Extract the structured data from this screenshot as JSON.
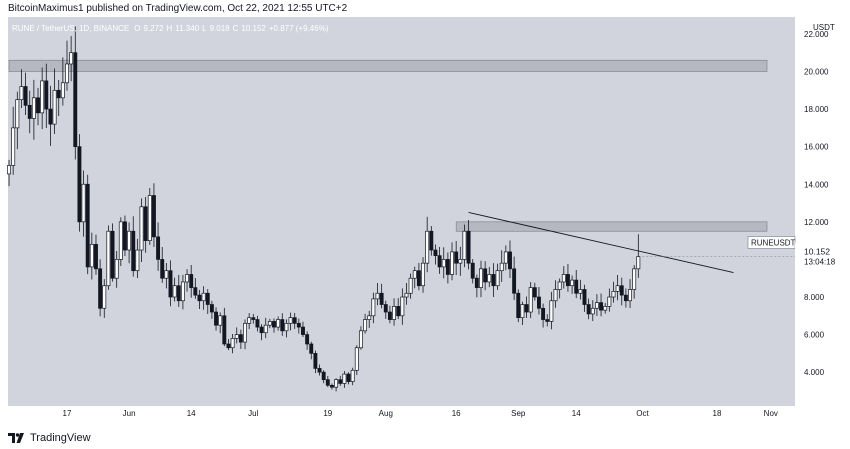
{
  "header": {
    "text": "BitcoinMaximus1 published on TradingView.com, Oct 22, 2021 12:55 UTC+2"
  },
  "footer": {
    "brand": "TradingView",
    "logo_icon": "tradingview-logo-icon"
  },
  "colors": {
    "background": "#d1d4dc",
    "candle": "#131722",
    "zone": "#b2b5be",
    "axis_text": "#131722"
  },
  "chart_data": {
    "type": "candlestick",
    "title": "RUNE / TetherUS, 1D, BINANCE",
    "ohlc_label": {
      "o_key": "O",
      "o": "9.272",
      "h_key": "H",
      "h": "11.340",
      "l_key": "L",
      "l": "9.018",
      "c_key": "C",
      "c": "10.152",
      "change": "+0.877 (+9.46%)"
    },
    "currency": "USDT",
    "y_range": [
      2.2,
      22.9
    ],
    "y_ticks": [
      "22.000",
      "20.000",
      "18.000",
      "16.000",
      "14.000",
      "12.000",
      "10.000",
      "8.000",
      "6.000",
      "4.000"
    ],
    "y_tick_values": [
      22,
      20,
      18,
      16,
      14,
      12,
      10,
      8,
      6,
      4
    ],
    "x_ticks": [
      "17",
      "Jun",
      "14",
      "Jul",
      "19",
      "Aug",
      "16",
      "Sep",
      "14",
      "Oct",
      "18",
      "Nov"
    ],
    "x_tick_index": [
      0,
      15,
      30,
      45,
      63,
      77,
      94,
      109,
      123,
      139,
      157,
      170
    ],
    "start_day_index": -14,
    "last_price": {
      "symbol": "RUNEUSDT",
      "price": "10.152",
      "countdown": "13:04:18"
    },
    "zones": [
      {
        "name": "resistance-zone-top",
        "from_index": -14,
        "to_index": 190,
        "low": 20.0,
        "high": 20.6
      },
      {
        "name": "resistance-zone-mid",
        "from_index": 94,
        "to_index": 190,
        "low": 11.5,
        "high": 12.0
      }
    ],
    "trendline": {
      "from": [
        97,
        12.5
      ],
      "to": [
        161,
        9.3
      ]
    },
    "closes": [
      15.0,
      17.0,
      18.5,
      19.2,
      18.2,
      17.5,
      18.6,
      17.8,
      19.5,
      18.0,
      17.2,
      19.0,
      18.6,
      19.4,
      20.4,
      21.0,
      16.0,
      12.0,
      14.0,
      9.6,
      10.8,
      9.5,
      7.4,
      8.6,
      11.5,
      9.0,
      10.0,
      12.0,
      10.5,
      11.5,
      9.4,
      10.5,
      12.8,
      11.0,
      13.4,
      11.2,
      10.0,
      9.0,
      9.4,
      8.0,
      8.6,
      7.8,
      8.8,
      9.2,
      8.5,
      8.1,
      7.8,
      8.2,
      7.6,
      7.2,
      6.5,
      7.0,
      5.5,
      5.3,
      5.8,
      6.0,
      5.6,
      6.6,
      6.9,
      6.8,
      6.4,
      6.1,
      6.5,
      6.7,
      6.4,
      6.8,
      6.2,
      6.6,
      6.9,
      6.6,
      6.4,
      6.0,
      5.5,
      5.0,
      4.2,
      4.0,
      3.6,
      3.3,
      3.2,
      3.6,
      3.4,
      3.9,
      3.5,
      4.1,
      5.3,
      6.2,
      6.8,
      7.0,
      7.9,
      8.2,
      7.6,
      7.2,
      6.8,
      7.5,
      7.0,
      8.0,
      8.2,
      9.0,
      9.4,
      8.6,
      9.8,
      11.5,
      10.5,
      10.2,
      9.6,
      10.0,
      9.2,
      10.4,
      9.8,
      10.0,
      11.5,
      9.8,
      9.0,
      8.5,
      9.5,
      8.8,
      9.2,
      8.6,
      9.4,
      9.8,
      10.4,
      9.5,
      8.2,
      6.9,
      7.6,
      7.2,
      8.5,
      8.0,
      7.4,
      6.8,
      6.7,
      7.8,
      8.4,
      8.8,
      9.2,
      8.6,
      8.9,
      8.2,
      8.4,
      7.6,
      7.1,
      7.4,
      7.7,
      7.3,
      7.5,
      8.0,
      8.3,
      8.6,
      8.1,
      7.8,
      8.4,
      9.5,
      10.152
    ]
  }
}
